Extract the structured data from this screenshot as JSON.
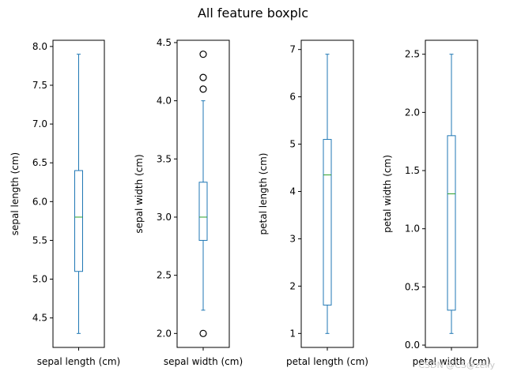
{
  "chart_title": "All feature boxplc",
  "watermark": "CSDN @CS@zelly",
  "colors": {
    "box": "#1f77b4",
    "median": "#2ca02c",
    "flier": "#000000",
    "axes": "#000000"
  },
  "chart_data": [
    {
      "type": "boxplot",
      "category": "sepal length (cm)",
      "ylabel": "sepal length (cm)",
      "ylim": [
        4.12,
        8.08
      ],
      "yticks": [
        4.5,
        5.0,
        5.5,
        6.0,
        6.5,
        7.0,
        7.5,
        8.0
      ],
      "ytick_labels": [
        "4.5",
        "5.0",
        "5.5",
        "6.0",
        "6.5",
        "7.0",
        "7.5",
        "8.0"
      ],
      "whisker_low": 4.3,
      "q1": 5.1,
      "median": 5.8,
      "q3": 6.4,
      "whisker_high": 7.9,
      "outliers": []
    },
    {
      "type": "boxplot",
      "category": "sepal width (cm)",
      "ylabel": "sepal width (cm)",
      "ylim": [
        1.88,
        4.52
      ],
      "yticks": [
        2.0,
        2.5,
        3.0,
        3.5,
        4.0,
        4.5
      ],
      "ytick_labels": [
        "2.0",
        "2.5",
        "3.0",
        "3.5",
        "4.0",
        "4.5"
      ],
      "whisker_low": 2.2,
      "q1": 2.8,
      "median": 3.0,
      "q3": 3.3,
      "whisker_high": 4.0,
      "outliers": [
        2.0,
        4.1,
        4.2,
        4.4
      ]
    },
    {
      "type": "boxplot",
      "category": "petal length (cm)",
      "ylabel": "petal length (cm)",
      "ylim": [
        0.705,
        7.195
      ],
      "yticks": [
        1,
        2,
        3,
        4,
        5,
        6,
        7
      ],
      "ytick_labels": [
        "1",
        "2",
        "3",
        "4",
        "5",
        "6",
        "7"
      ],
      "whisker_low": 1.0,
      "q1": 1.6,
      "median": 4.35,
      "q3": 5.1,
      "whisker_high": 6.9,
      "outliers": []
    },
    {
      "type": "boxplot",
      "category": "petal width (cm)",
      "ylabel": "petal width (cm)",
      "ylim": [
        -0.02,
        2.62
      ],
      "yticks": [
        0.0,
        0.5,
        1.0,
        1.5,
        2.0,
        2.5
      ],
      "ytick_labels": [
        "0.0",
        "0.5",
        "1.0",
        "1.5",
        "2.0",
        "2.5"
      ],
      "whisker_low": 0.1,
      "q1": 0.3,
      "median": 1.3,
      "q3": 1.8,
      "whisker_high": 2.5,
      "outliers": []
    }
  ]
}
